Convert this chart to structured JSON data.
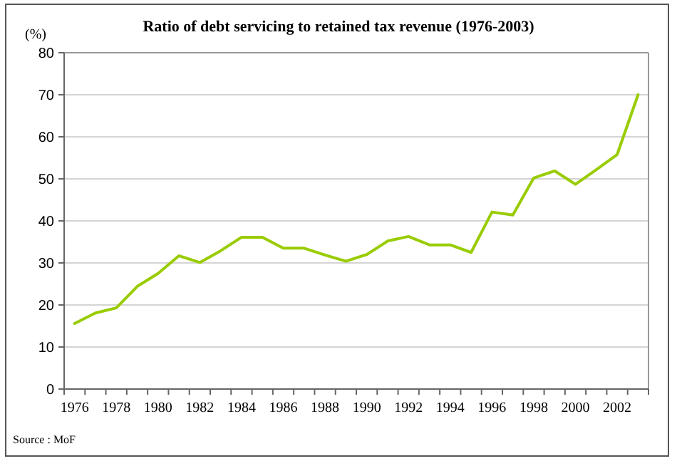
{
  "chart_data": {
    "type": "line",
    "title": "Ratio of debt servicing to retained tax revenue (1976-2003)",
    "ylabel": "(%)",
    "categories": [
      "1976",
      null,
      "1978",
      null,
      "1980",
      null,
      "1982",
      null,
      "1984",
      null,
      "1986",
      null,
      "1988",
      null,
      "1990",
      null,
      "1992",
      null,
      "1994",
      null,
      "1996",
      null,
      "1998",
      null,
      "2000",
      null,
      "2002",
      null
    ],
    "series": [
      {
        "color": "#99cc00",
        "values": [
          15.6,
          18.1,
          19.3,
          24.4,
          27.5,
          31.7,
          30.1,
          32.9,
          36.1,
          36.1,
          33.5,
          33.5,
          31.9,
          30.4,
          32.0,
          35.2,
          36.3,
          34.3,
          34.3,
          32.5,
          42.1,
          41.4,
          50.2,
          51.9,
          48.7,
          52.2,
          55.8,
          70
        ]
      }
    ],
    "ylim": [
      0,
      80
    ],
    "yticks": [
      0,
      10,
      20,
      30,
      40,
      50,
      60,
      70,
      80
    ],
    "grid": "y",
    "marker": "none",
    "line_style": "solid",
    "annotations": [
      "Source : MoF"
    ]
  }
}
